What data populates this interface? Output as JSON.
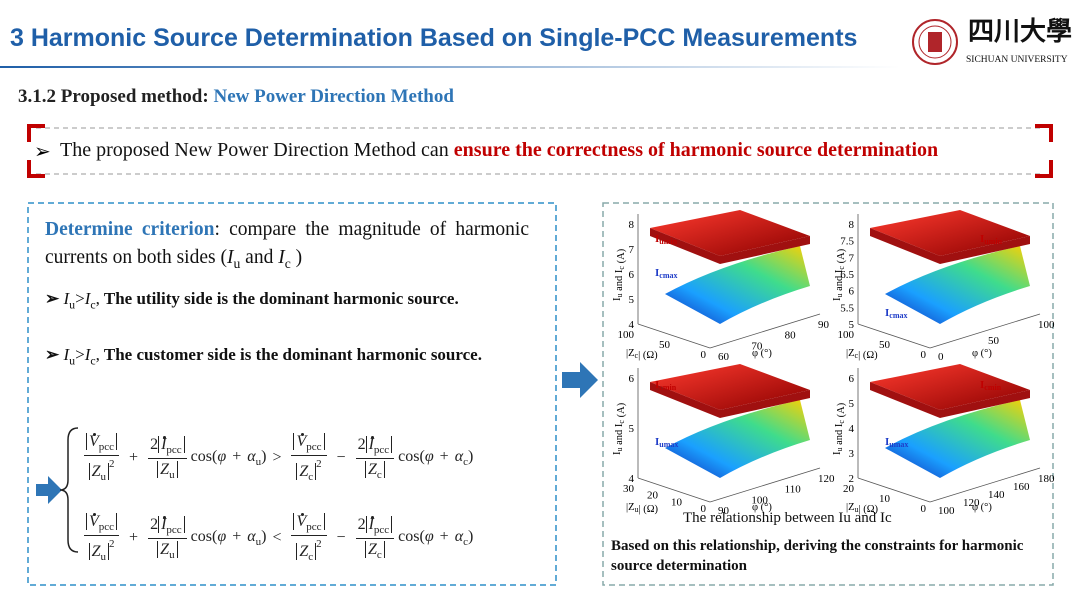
{
  "header": {
    "title": "3 Harmonic Source Determination Based on Single-PCC Measurements",
    "logo_cn": "四川大學",
    "logo_en": "SICHUAN UNIVERSITY"
  },
  "subtitle": {
    "label": "3.1.2 Proposed method:",
    "highlight": "New Power Direction Method"
  },
  "banner": {
    "bullet": "➢",
    "text": "The proposed New Power Direction Method can",
    "emphasis": "ensure the correctness of harmonic source determination"
  },
  "criterion": {
    "lead": "Determine criterion",
    "text": ": compare the magnitude of harmonic currents on both sides (",
    "i": "I",
    "u": "u",
    "and": " and ",
    "c": "c",
    "close": " )",
    "bullets": [
      {
        "mark": "➢",
        "op": ">",
        "sep": ",",
        "text": "The utility side is the dominant harmonic source."
      },
      {
        "mark": "➢",
        "op": ">",
        "sep": ",",
        "text": "The customer side is the dominant harmonic source."
      }
    ]
  },
  "formula": {
    "v": "V",
    "i": "I",
    "pcc": "pcc",
    "z": "Z",
    "u": "u",
    "c": "c",
    "two": "2",
    "plus": "+",
    "minus": "−",
    "cos": "cos",
    "open": "(",
    "close": ")",
    "phi": "φ",
    "alpha": "α",
    "gt": ">",
    "lt": "<"
  },
  "figure": {
    "ylabel": {
      "a": "I",
      "a_sub": "u",
      "mid": " and ",
      "b": "I",
      "b_sub": "c",
      "unit": " (A)"
    },
    "zlabel": {
      "pre": "|Z",
      "post": "| (Ω)"
    },
    "philabel": "φ (°)",
    "plots": [
      {
        "yticks": [
          4,
          5,
          6,
          7,
          8
        ],
        "zsub": "c",
        "zticks": [
          100,
          50,
          0
        ],
        "phiticks": [
          60,
          70,
          80,
          90
        ],
        "upper": {
          "base": "I",
          "sub": "umin"
        },
        "lower": {
          "base": "I",
          "sub": "cmax"
        }
      },
      {
        "yticks": [
          5,
          5.5,
          6,
          6.5,
          7,
          7.5,
          8
        ],
        "zsub": "c",
        "zticks": [
          100,
          50,
          0
        ],
        "phiticks": [
          0,
          50,
          100
        ],
        "upper": {
          "base": "I",
          "sub": "umin"
        },
        "lower": {
          "base": "I",
          "sub": "cmax"
        }
      },
      {
        "yticks": [
          4,
          5,
          6
        ],
        "zsub": "u",
        "zticks": [
          30,
          20,
          10,
          0
        ],
        "phiticks": [
          90,
          100,
          110,
          120
        ],
        "upper": {
          "base": "I",
          "sub": "cmin"
        },
        "lower": {
          "base": "I",
          "sub": "umax"
        }
      },
      {
        "yticks": [
          2,
          3,
          4,
          5,
          6
        ],
        "zsub": "u",
        "zticks": [
          20,
          10,
          0
        ],
        "phiticks": [
          100,
          120,
          140,
          160,
          180
        ],
        "upper": {
          "base": "I",
          "sub": "cmin"
        },
        "lower": {
          "base": "I",
          "sub": "umax"
        }
      }
    ],
    "caption": "The relationship between Iu and Ic",
    "conclusion": "Based on this relationship, deriving the constraints for harmonic source determination"
  }
}
